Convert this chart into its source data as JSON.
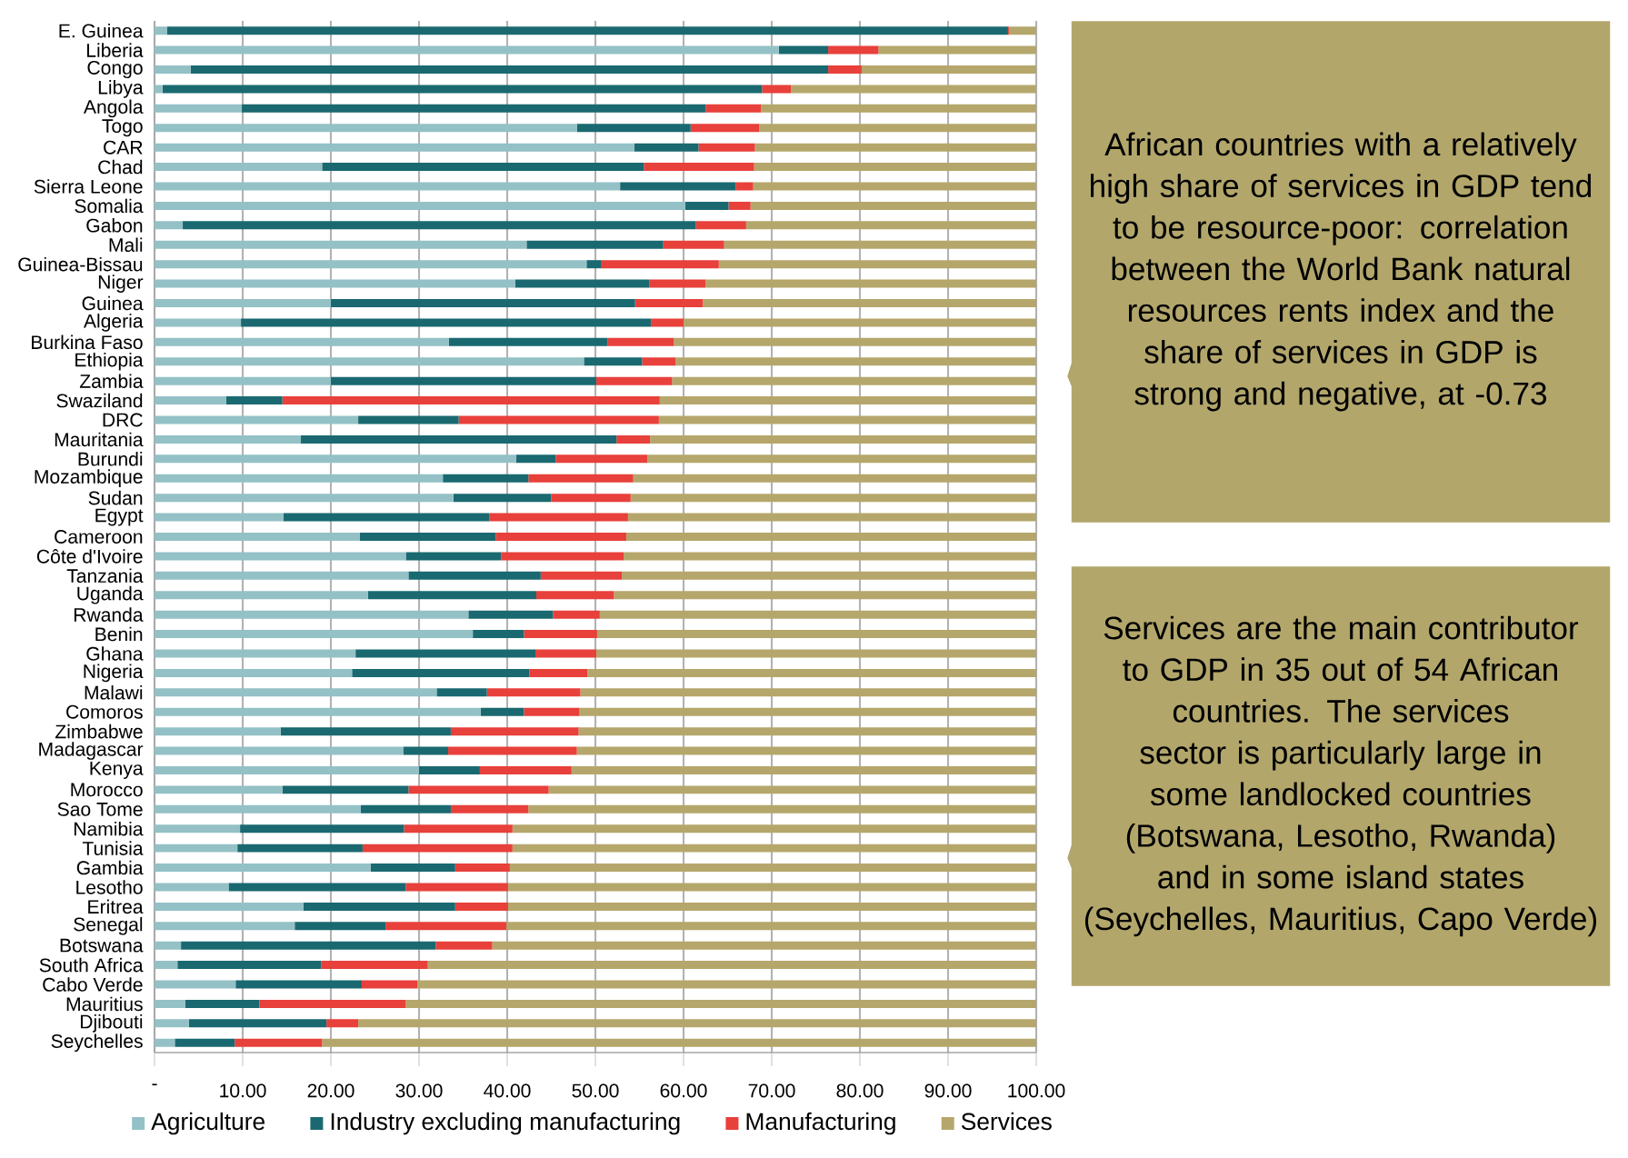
{
  "chart_data": {
    "type": "bar",
    "orientation": "horizontal",
    "stacked": true,
    "grid": "x",
    "legend": "bottom",
    "categories": [
      "E. Guinea",
      "Liberia",
      "Congo",
      "Libya",
      "Angola",
      "Togo",
      "CAR",
      "Chad",
      "Sierra Leone",
      "Somalia",
      "Gabon",
      "Mali",
      "Guinea-Bissau",
      "Niger",
      "Guinea",
      "Algeria",
      "Burkina Faso",
      "Ethiopia",
      "Zambia",
      "Swaziland",
      "DRC",
      "Mauritania",
      "Burundi",
      "Mozambique",
      "Sudan",
      "Egypt",
      "Cameroon",
      "Côte d'Ivoire",
      "Tanzania",
      "Uganda",
      "Rwanda",
      "Benin",
      "Ghana",
      "Nigeria",
      "Malawi",
      "Comoros",
      "Zimbabwe",
      "Madagascar",
      "Kenya",
      "Morocco",
      "Sao Tome",
      "Namibia",
      "Tunisia",
      "Gambia",
      "Lesotho",
      "Eritrea",
      "Senegal",
      "Botswana",
      "South Africa",
      "Cabo Verde",
      "Mauritius",
      "Djibouti",
      "Seychelles"
    ],
    "series": [
      {
        "name": "Agriculture",
        "color": "#93c1c6",
        "values": [
          1.4,
          70.8,
          4.1,
          0.9,
          9.9,
          47.9,
          54.4,
          19.0,
          52.8,
          60.2,
          3.2,
          42.2,
          49.0,
          40.9,
          20.0,
          9.8,
          33.4,
          48.7,
          20.0,
          8.1,
          23.1,
          16.6,
          41.0,
          32.7,
          33.9,
          14.6,
          23.3,
          28.5,
          28.8,
          24.2,
          35.6,
          36.1,
          22.8,
          22.4,
          32.0,
          37.0,
          14.3,
          28.2,
          30.0,
          14.5,
          23.4,
          9.7,
          9.4,
          24.5,
          8.4,
          16.9,
          15.9,
          3.0,
          2.6,
          9.2,
          3.5,
          3.9,
          2.3
        ]
      },
      {
        "name": "Industry excluding manufacturing",
        "color": "#1a6970",
        "values": [
          95.4,
          5.6,
          72.3,
          68.0,
          52.6,
          12.9,
          7.3,
          36.5,
          13.1,
          4.9,
          58.2,
          15.5,
          1.7,
          15.2,
          34.5,
          46.5,
          18.0,
          6.6,
          30.1,
          6.4,
          11.4,
          35.8,
          4.5,
          9.7,
          11.1,
          23.4,
          15.4,
          10.8,
          15.0,
          19.1,
          9.6,
          5.8,
          20.4,
          20.1,
          5.7,
          4.9,
          19.3,
          5.1,
          6.9,
          14.3,
          10.2,
          18.6,
          14.2,
          9.6,
          20.1,
          17.2,
          10.3,
          28.9,
          16.3,
          14.3,
          8.4,
          15.6,
          6.8
        ]
      },
      {
        "name": "Manufacturing",
        "color": "#e8403b",
        "values": [
          0.1,
          5.7,
          3.8,
          3.3,
          6.3,
          7.8,
          6.4,
          12.5,
          2.0,
          2.5,
          5.7,
          6.9,
          13.3,
          6.4,
          7.7,
          3.7,
          7.5,
          3.8,
          8.6,
          42.8,
          22.7,
          3.8,
          10.4,
          11.9,
          9.0,
          15.7,
          14.8,
          13.9,
          9.2,
          8.8,
          5.3,
          8.3,
          6.9,
          6.6,
          10.6,
          6.3,
          14.5,
          14.6,
          10.4,
          15.9,
          8.8,
          12.3,
          17.0,
          6.2,
          11.6,
          6.0,
          13.7,
          6.4,
          12.1,
          6.3,
          16.6,
          3.6,
          9.9
        ]
      },
      {
        "name": "Services",
        "color": "#b5a76b",
        "values": [
          3.1,
          17.9,
          19.8,
          27.8,
          31.2,
          31.4,
          31.9,
          32.0,
          32.1,
          32.4,
          32.9,
          35.4,
          36.0,
          37.5,
          37.8,
          40.0,
          41.1,
          40.9,
          41.3,
          42.7,
          42.8,
          43.8,
          44.1,
          45.7,
          46.0,
          46.3,
          46.5,
          46.8,
          47.0,
          47.9,
          49.5,
          49.8,
          49.9,
          50.9,
          51.7,
          51.8,
          51.9,
          52.1,
          52.7,
          55.3,
          57.6,
          59.4,
          59.4,
          59.7,
          59.9,
          59.9,
          60.1,
          61.7,
          69.0,
          70.2,
          71.5,
          76.9,
          81.0
        ]
      }
    ],
    "xlim": [
      0,
      100
    ],
    "xticks": [
      {
        "value": 0,
        "label": "-"
      },
      {
        "value": 10,
        "label": "10.00"
      },
      {
        "value": 20,
        "label": "20.00"
      },
      {
        "value": 30,
        "label": "30.00"
      },
      {
        "value": 40,
        "label": "40.00"
      },
      {
        "value": 50,
        "label": "50.00"
      },
      {
        "value": 60,
        "label": "60.00"
      },
      {
        "value": 70,
        "label": "70.00"
      },
      {
        "value": 80,
        "label": "80.00"
      },
      {
        "value": 90,
        "label": "90.00"
      },
      {
        "value": 100,
        "label": "100.00"
      }
    ],
    "annotations": [
      "African countries with a relatively high share of services in GDP tend to be resource-poor: correlation between the World Bank natural resources rents index and the share of services in GDP is strong and negative, at -0.73",
      "Services are the main contributor to GDP in 35 out of 54 African countries. The services sector is particularly large in some landlocked countries (Botswana, Lesotho, Rwanda) and in some island states (Seychelles, Mauritius, Capo Verde)"
    ]
  }
}
